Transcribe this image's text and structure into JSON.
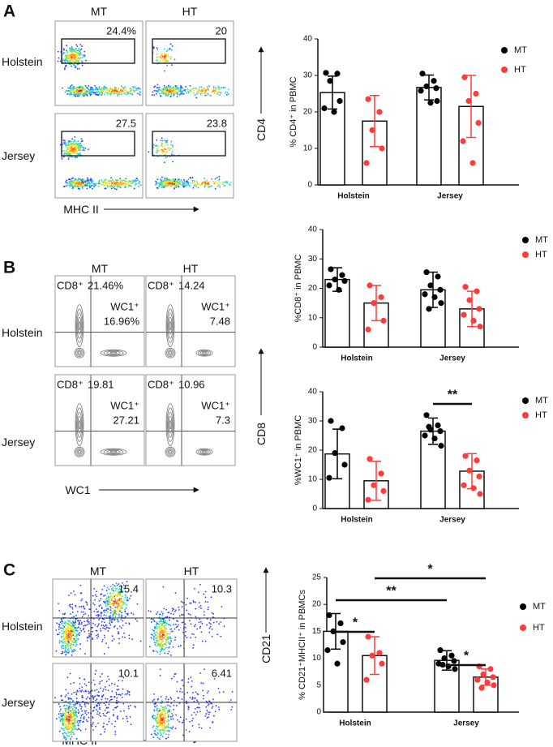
{
  "panels": [
    {
      "letter": "A",
      "columns": [
        "MT",
        "HT"
      ],
      "rows": [
        "Holstein",
        "Jersey"
      ],
      "y_label": "CD4",
      "x_label": "MHC II",
      "gates": [
        "24.4%",
        "20",
        "27.5",
        "23.8"
      ]
    },
    {
      "letter": "B",
      "columns": [
        "MT",
        "HT"
      ],
      "rows": [
        "Holstein",
        "Jersey"
      ],
      "y_label": "CD8",
      "x_label": "WC1",
      "quadrants": [
        [
          "CD8⁺",
          "21.46%",
          "WC1⁺",
          "16.96%"
        ],
        [
          "CD8⁺",
          "14.24",
          "WC1⁺",
          "7.48"
        ],
        [
          "CD8⁺",
          "19.81",
          "WC1⁺",
          "27.21"
        ],
        [
          "CD8⁺",
          "10.96",
          "WC1⁺",
          "7.3"
        ]
      ]
    },
    {
      "letter": "C",
      "columns": [
        "MT",
        "HT"
      ],
      "rows": [
        "Holstein",
        "Jersey"
      ],
      "y_label": "CD21",
      "x_label": "MHC II",
      "gates": [
        "15.4",
        "10.3",
        "10.1",
        "6.41"
      ]
    }
  ],
  "chart_data": [
    {
      "type": "bar",
      "y_label": "% CD4⁺ in PBMC",
      "categories": [
        "Holstein",
        "Jersey"
      ],
      "ylim": [
        0,
        40
      ],
      "yticks": [
        0,
        10,
        20,
        30,
        40
      ],
      "series": [
        {
          "name": "MT",
          "color": "#000000",
          "values": [
            25.3,
            26.7
          ],
          "errors": [
            4.5,
            3.4
          ],
          "points": [
            [
              30.7,
              30.5,
              28.5,
              23,
              21,
              20
            ],
            [
              30.5,
              28.5,
              27,
              26.5,
              25.8,
              22.5,
              23
            ]
          ]
        },
        {
          "name": "HT",
          "color": "#ff3b3b",
          "values": [
            17.5,
            21.5
          ],
          "errors": [
            7,
            8.5
          ],
          "points": [
            [
              23.5,
              20,
              15,
              10,
              6
            ],
            [
              29.5,
              25,
              23,
              17,
              12,
              6
            ]
          ]
        }
      ],
      "annotations": []
    },
    {
      "type": "bar",
      "y_label": "%CD8⁺ in PBMC",
      "categories": [
        "Holstein",
        "Jersey"
      ],
      "ylim": [
        0,
        40
      ],
      "yticks": [
        0,
        10,
        20,
        30,
        40
      ],
      "series": [
        {
          "name": "MT",
          "color": "#000000",
          "values": [
            23,
            19.5
          ],
          "errors": [
            4,
            6
          ],
          "points": [
            [
              26.5,
              24.5,
              23,
              22.5,
              21,
              19.5
            ],
            [
              25.5,
              24,
              21,
              19.5,
              18,
              17,
              15,
              13
            ]
          ]
        },
        {
          "name": "HT",
          "color": "#ff3b3b",
          "values": [
            15,
            13
          ],
          "errors": [
            6,
            6
          ],
          "points": [
            [
              21,
              17,
              15,
              9,
              6
            ],
            [
              20.5,
              19,
              16,
              13,
              11,
              9,
              7
            ]
          ]
        }
      ],
      "annotations": []
    },
    {
      "type": "bar",
      "y_label": "%WC1⁺ in PBMC",
      "categories": [
        "Holstein",
        "Jersey"
      ],
      "ylim": [
        0,
        40
      ],
      "yticks": [
        0,
        10,
        20,
        30,
        40
      ],
      "series": [
        {
          "name": "MT",
          "color": "#000000",
          "values": [
            18.7,
            26.5
          ],
          "errors": [
            8.5,
            4.5
          ],
          "points": [
            [
              30,
              27.5,
              19,
              15,
              10.5
            ],
            [
              32,
              28.5,
              27,
              26.5,
              25,
              24,
              21.5,
              28
            ]
          ]
        },
        {
          "name": "HT",
          "color": "#ff3b3b",
          "values": [
            9.5,
            12.8
          ],
          "errors": [
            6.7,
            6
          ],
          "points": [
            [
              17,
              12,
              8,
              6,
              3
            ],
            [
              18,
              16.5,
              13,
              11,
              8,
              7,
              5
            ]
          ]
        }
      ],
      "annotations": [
        "**"
      ]
    },
    {
      "type": "bar",
      "y_label": "% CD21⁺MHCII⁺ in PBMCs",
      "categories": [
        "Holstein",
        "Jersey"
      ],
      "ylim": [
        0,
        25
      ],
      "yticks": [
        0,
        5,
        10,
        15,
        20,
        25
      ],
      "series": [
        {
          "name": "MT",
          "color": "#000000",
          "values": [
            15,
            9.6
          ],
          "errors": [
            3.3,
            1.8
          ],
          "points": [
            [
              18,
              16.5,
              15,
              13,
              11.5,
              9
            ],
            [
              11.5,
              10.5,
              10,
              9.5,
              9,
              8.5,
              8,
              8.8
            ]
          ]
        },
        {
          "name": "HT",
          "color": "#ff3b3b",
          "values": [
            10.5,
            6.5
          ],
          "errors": [
            3.5,
            1.5
          ],
          "points": [
            [
              14,
              11,
              10.5,
              9,
              6
            ],
            [
              8.5,
              8,
              7,
              6.5,
              6,
              5.5,
              5,
              4.5
            ]
          ]
        }
      ],
      "annotations": [
        "*",
        "**",
        "*",
        "*"
      ]
    }
  ]
}
